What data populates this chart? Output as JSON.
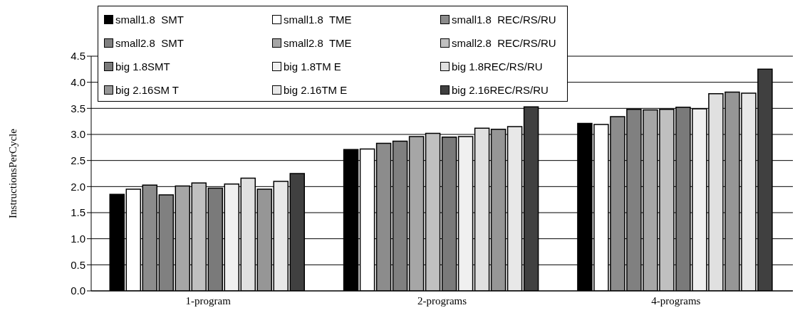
{
  "chart_data": {
    "type": "bar",
    "ylabel": "InstructionsPerCycle",
    "categories": [
      "1-program",
      "2-programs",
      "4-programs"
    ],
    "series": [
      {
        "name": "small1.8  SMT",
        "color": "#000000",
        "values": [
          1.85,
          2.71,
          3.21
        ]
      },
      {
        "name": "small1.8  TME",
        "color": "#ffffff",
        "values": [
          1.95,
          2.72,
          3.19
        ]
      },
      {
        "name": "small1.8  REC/RS/RU",
        "color": "#8c8c8c",
        "values": [
          2.03,
          2.83,
          3.34
        ]
      },
      {
        "name": "small2.8  SMT",
        "color": "#808080",
        "values": [
          1.84,
          2.87,
          3.48
        ]
      },
      {
        "name": "small2.8  TME",
        "color": "#a6a6a6",
        "values": [
          2.01,
          2.96,
          3.47
        ]
      },
      {
        "name": "small2.8  REC/RS/RU",
        "color": "#c0c0c0",
        "values": [
          2.07,
          3.02,
          3.48
        ]
      },
      {
        "name": "big 1.8SMT",
        "color": "#7a7a7a",
        "values": [
          1.97,
          2.95,
          3.52
        ]
      },
      {
        "name": "big 1.8TM E",
        "color": "#f0f0f0",
        "values": [
          2.05,
          2.96,
          3.49
        ]
      },
      {
        "name": "big 1.8REC/RS/RU",
        "color": "#e0e0e0",
        "values": [
          2.16,
          3.12,
          3.78
        ]
      },
      {
        "name": "big 2.16SM T",
        "color": "#969696",
        "values": [
          1.95,
          3.1,
          3.81
        ]
      },
      {
        "name": "big 2.16TM E",
        "color": "#e8e8e8",
        "values": [
          2.1,
          3.15,
          3.79
        ]
      },
      {
        "name": "big 2.16REC/RS/RU",
        "color": "#404040",
        "values": [
          2.25,
          3.53,
          4.25
        ]
      }
    ],
    "ylim": [
      0,
      4.5
    ],
    "yticks": [
      {
        "value": 0,
        "label": "0.0"
      },
      {
        "value": 0.5,
        "label": "0.5"
      },
      {
        "value": 1,
        "label": "1.0"
      },
      {
        "value": 1.5,
        "label": "1.5"
      },
      {
        "value": 2,
        "label": "2.0"
      },
      {
        "value": 2.5,
        "label": "2.5"
      },
      {
        "value": 3,
        "label": "3.0"
      },
      {
        "value": 3.5,
        "label": "3.5"
      },
      {
        "value": 4,
        "label": "4.0"
      },
      {
        "value": 4.5,
        "label": "4.5"
      }
    ],
    "grid": "y",
    "legend": "top"
  }
}
